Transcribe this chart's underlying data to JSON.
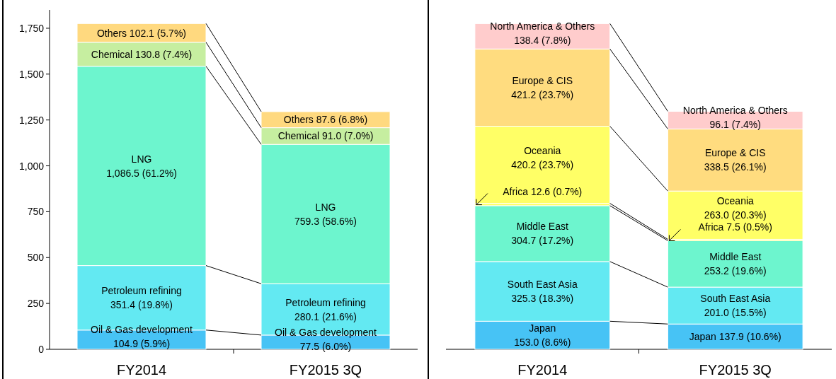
{
  "chart_data": [
    {
      "type": "bar",
      "stacked": true,
      "categories": [
        "FY2014",
        "FY2015 3Q"
      ],
      "ylim": [
        0,
        1850
      ],
      "yticks": [
        0,
        {
          "value": 250,
          "label": "250"
        },
        {
          "value": 500,
          "label": "500"
        },
        {
          "value": 750,
          "label": "750"
        },
        {
          "value": 1000,
          "label": "1,000"
        },
        {
          "value": 1250,
          "label": "1,250"
        },
        {
          "value": 1500,
          "label": "1,500"
        },
        {
          "value": 1750,
          "label": "1,750"
        }
      ],
      "grid": false,
      "series": [
        {
          "name": "Oil & Gas development",
          "color": "#47c3f5",
          "values": [
            104.9,
            77.5
          ],
          "value_labels": [
            "104.9  (5.9%)",
            "77.5  (6.0%)"
          ]
        },
        {
          "name": "Petroleum refining",
          "color": "#63e9f2",
          "values": [
            351.4,
            280.1
          ],
          "value_labels": [
            "351.4  (19.8%)",
            "280.1  (21.6%)"
          ]
        },
        {
          "name": "LNG",
          "color": "#6df5ce",
          "values": [
            1086.5,
            759.3
          ],
          "value_labels": [
            "1,086.5  (61.2%)",
            "759.3  (58.6%)"
          ]
        },
        {
          "name": "Chemical",
          "color": "#c6eea0",
          "values": [
            130.8,
            91.0
          ],
          "value_labels": [
            "130.8  (7.4%)",
            "91.0  (7.0%)"
          ]
        },
        {
          "name": "Others",
          "color": "#ffd97f",
          "values": [
            102.1,
            87.6
          ],
          "value_labels": [
            "102.1  (5.7%)",
            "87.6  (6.8%)"
          ]
        }
      ]
    },
    {
      "type": "bar",
      "stacked": true,
      "categories": [
        "FY2014",
        "FY2015 3Q"
      ],
      "tick_labels": "x",
      "grid": false,
      "series": [
        {
          "name": "Japan",
          "color": "#47c3f5",
          "values": [
            153.0,
            137.9
          ],
          "value_labels": [
            "153.0  (8.6%)",
            "137.9  (10.6%)"
          ]
        },
        {
          "name": "South East Asia",
          "color": "#63e9f2",
          "values": [
            325.3,
            201.0
          ],
          "value_labels": [
            "325.3  (18.3%)",
            "201.0  (15.5%)"
          ]
        },
        {
          "name": "Middle East",
          "color": "#6df5ce",
          "values": [
            304.7,
            253.2
          ],
          "value_labels": [
            "304.7  (17.2%)",
            "253.2  (19.6%)"
          ]
        },
        {
          "name": "Africa",
          "color": "#ffff66",
          "values": [
            12.6,
            7.5
          ],
          "value_labels": [
            "12.6  (0.7%)",
            "7.5  (0.5%)"
          ]
        },
        {
          "name": "Oceania",
          "color": "#ffff66",
          "values": [
            420.2,
            263.0
          ],
          "value_labels": [
            "420.2  (23.7%)",
            "263.0  (20.3%)"
          ]
        },
        {
          "name": "Europe & CIS",
          "color": "#ffdc7f",
          "values": [
            421.2,
            338.5
          ],
          "value_labels": [
            "421.2  (23.7%)",
            "338.5  (26.1%)"
          ]
        },
        {
          "name": "North America & Others",
          "color": "#ffcccc",
          "values": [
            138.4,
            96.1
          ],
          "value_labels": [
            "138.4  (7.8%)",
            "96.1  (7.4%)"
          ]
        }
      ]
    }
  ]
}
